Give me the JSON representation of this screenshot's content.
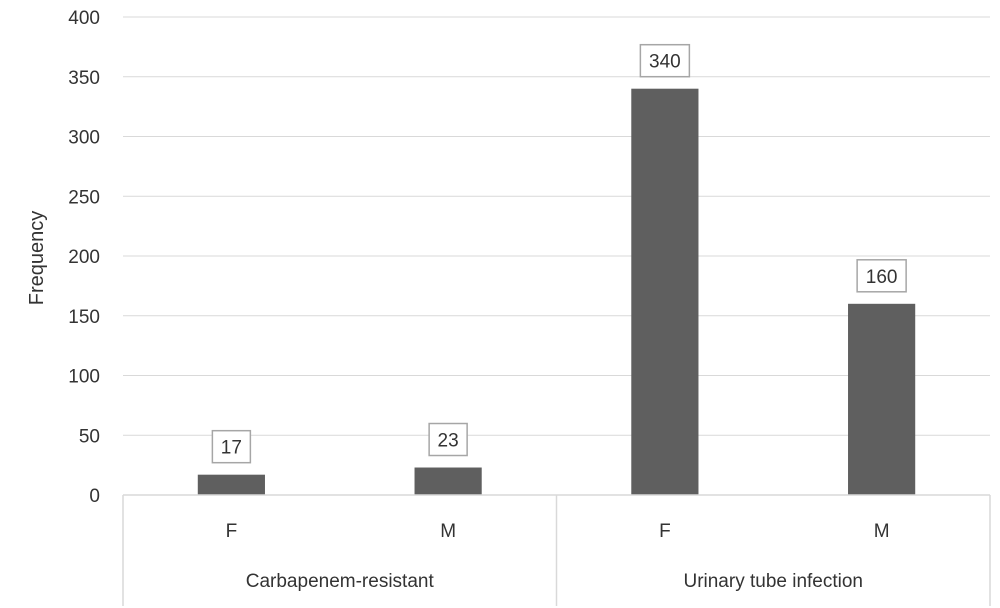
{
  "chart_data": {
    "type": "bar",
    "ylabel": "Frequency",
    "ylim": [
      0,
      400
    ],
    "y_ticks": [
      "0",
      "50",
      "100",
      "150",
      "200",
      "250",
      "300",
      "350",
      "400"
    ],
    "groups": [
      {
        "label": "Carbapenem-resistant",
        "categories": [
          "F",
          "M"
        ],
        "values": [
          17,
          23
        ]
      },
      {
        "label": "Urinary tube infection",
        "categories": [
          "F",
          "M"
        ],
        "values": [
          340,
          160
        ]
      }
    ],
    "data_labels": true,
    "grid": true,
    "bar_color": "#5f5f5f"
  }
}
